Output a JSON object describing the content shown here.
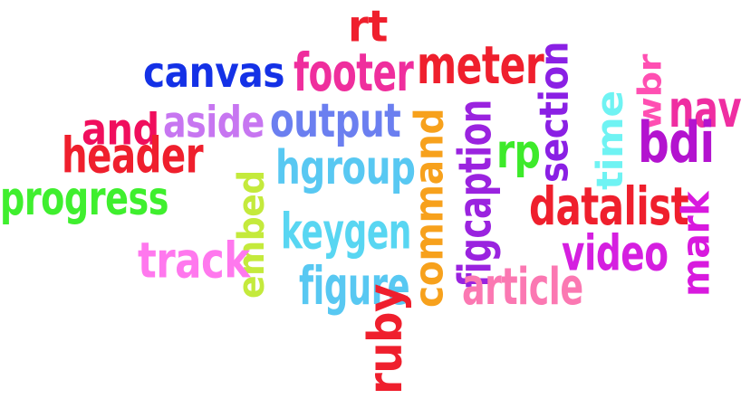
{
  "words": [
    {
      "id": "rt",
      "text": "rt",
      "color": "#ef1f2d",
      "vertical": false
    },
    {
      "id": "canvas",
      "text": "canvas",
      "color": "#1431e6",
      "vertical": false
    },
    {
      "id": "footer",
      "text": "footer",
      "color": "#ef2e9d",
      "vertical": false
    },
    {
      "id": "meter",
      "text": "meter",
      "color": "#ef1f2d",
      "vertical": false
    },
    {
      "id": "section",
      "text": "section",
      "color": "#8a20e4",
      "vertical": true
    },
    {
      "id": "wbr",
      "text": "wbr",
      "color": "#ff4fb2",
      "vertical": true
    },
    {
      "id": "nav",
      "text": "nav",
      "color": "#ef2ea1",
      "vertical": false
    },
    {
      "id": "and",
      "text": "and",
      "color": "#f00e5d",
      "vertical": false
    },
    {
      "id": "aside",
      "text": "aside",
      "color": "#c776f1",
      "vertical": false
    },
    {
      "id": "output",
      "text": "output",
      "color": "#6b7ff0",
      "vertical": false
    },
    {
      "id": "time",
      "text": "time",
      "color": "#6ff3f3",
      "vertical": true
    },
    {
      "id": "bdi",
      "text": "bdi",
      "color": "#b313cf",
      "vertical": false
    },
    {
      "id": "header",
      "text": "header",
      "color": "#ef1f2d",
      "vertical": false
    },
    {
      "id": "hgroup",
      "text": "hgroup",
      "color": "#58c8f2",
      "vertical": false
    },
    {
      "id": "command",
      "text": "command",
      "color": "#f7a11c",
      "vertical": true
    },
    {
      "id": "figcaption",
      "text": "figcaption",
      "color": "#9a23df",
      "vertical": true
    },
    {
      "id": "rp",
      "text": "rp",
      "color": "#3dea2a",
      "vertical": false
    },
    {
      "id": "progress",
      "text": "progress",
      "color": "#3fef2e",
      "vertical": false
    },
    {
      "id": "embed",
      "text": "embed",
      "color": "#c4ea3c",
      "vertical": true
    },
    {
      "id": "datalist",
      "text": "datalist",
      "color": "#ef1f2d",
      "vertical": false
    },
    {
      "id": "mark",
      "text": "mark",
      "color": "#d819de",
      "vertical": true
    },
    {
      "id": "keygen",
      "text": "keygen",
      "color": "#58d6f2",
      "vertical": false
    },
    {
      "id": "track",
      "text": "track",
      "color": "#ff78ee",
      "vertical": false
    },
    {
      "id": "video",
      "text": "video",
      "color": "#d51fe0",
      "vertical": false
    },
    {
      "id": "figure",
      "text": "figure",
      "color": "#58c8f2",
      "vertical": false
    },
    {
      "id": "article",
      "text": "article",
      "color": "#fb78b2",
      "vertical": false
    },
    {
      "id": "ruby",
      "text": "ruby",
      "color": "#ef1f2d",
      "vertical": true
    }
  ]
}
